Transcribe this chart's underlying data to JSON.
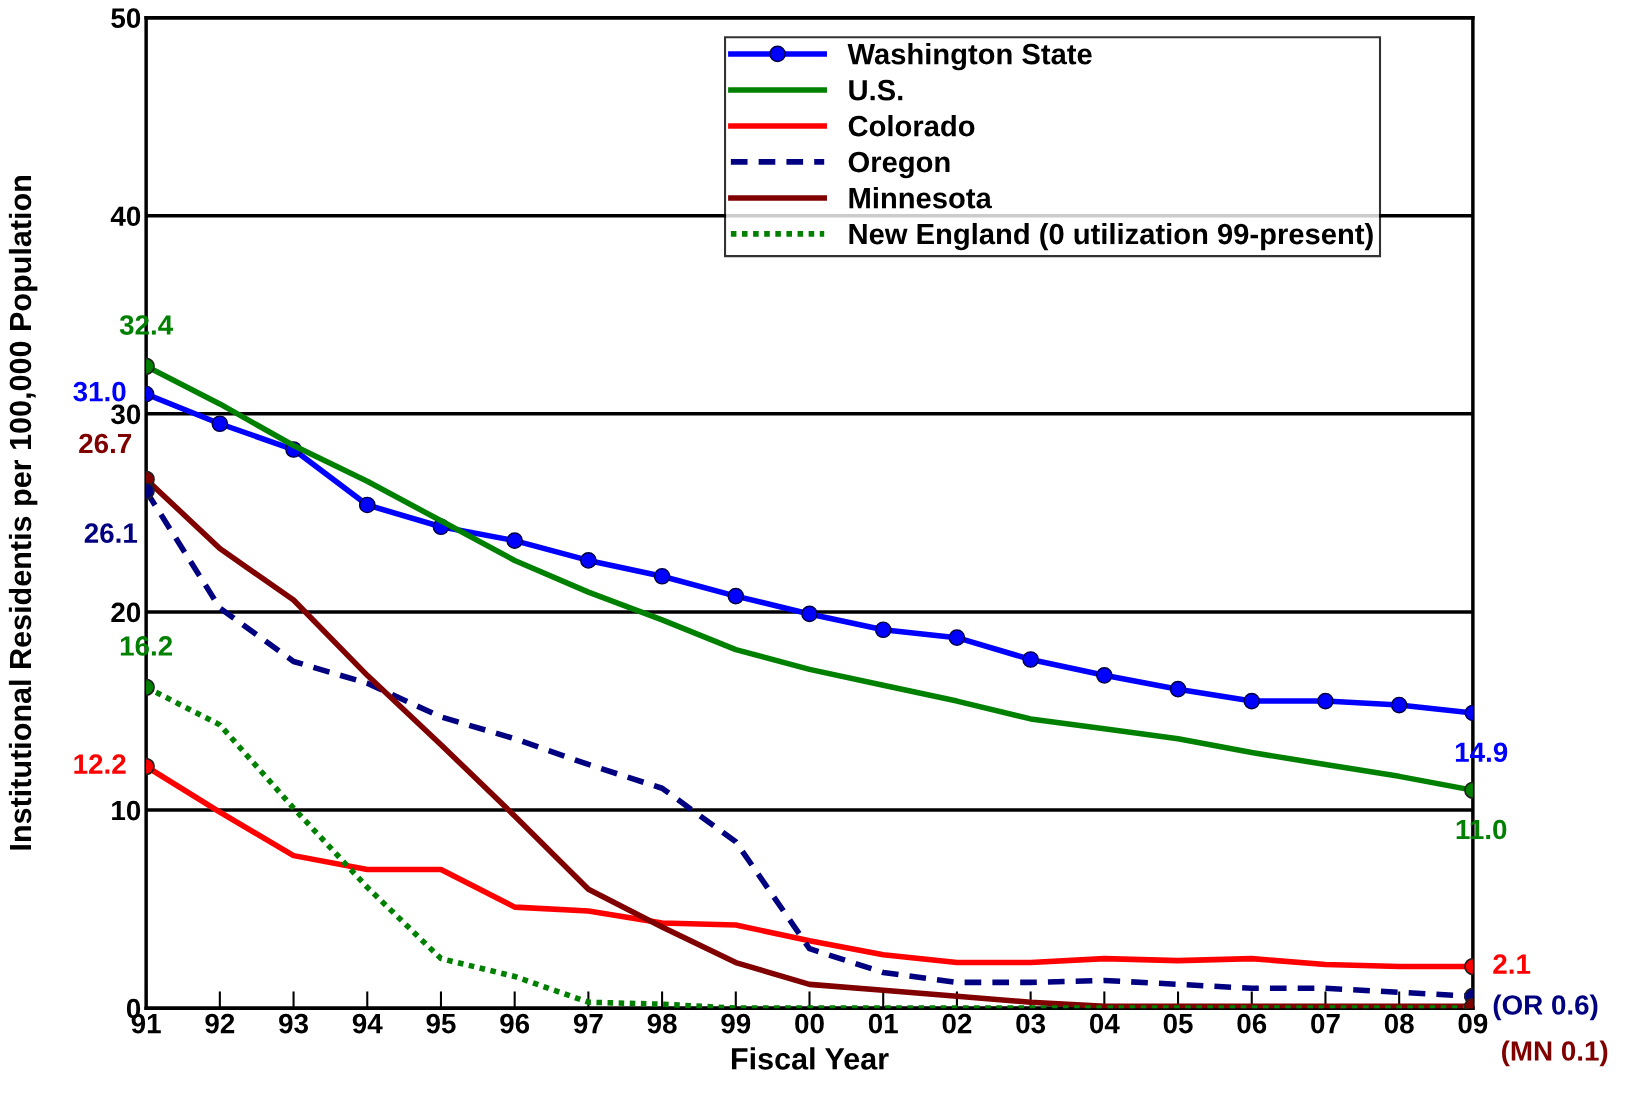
{
  "chart_data": {
    "type": "line",
    "xlabel": "Fiscal Year",
    "ylabel": "Institutional Residentis per 100,000 Population",
    "categories": [
      "91",
      "92",
      "93",
      "94",
      "95",
      "96",
      "97",
      "98",
      "99",
      "00",
      "01",
      "02",
      "03",
      "04",
      "05",
      "06",
      "07",
      "08",
      "09"
    ],
    "ylim": [
      0,
      50
    ],
    "yticks": [
      0,
      10,
      20,
      30,
      40,
      50
    ],
    "grid": "y",
    "legend": "top right",
    "series": [
      {
        "name": "Washington State",
        "color": "#0000ff",
        "marker": "circle",
        "line_style": "solid",
        "values": [
          31.0,
          29.5,
          28.2,
          25.4,
          24.3,
          23.6,
          22.6,
          21.8,
          20.8,
          19.9,
          19.1,
          18.7,
          17.6,
          16.8,
          16.1,
          15.5,
          15.5,
          15.3,
          14.9
        ]
      },
      {
        "name": "U.S.",
        "color": "#008000",
        "marker": "none",
        "line_style": "solid",
        "values": [
          32.4,
          30.5,
          28.4,
          26.6,
          24.6,
          22.6,
          21.0,
          19.6,
          18.1,
          17.1,
          16.3,
          15.5,
          14.6,
          14.1,
          13.6,
          12.9,
          12.3,
          11.7,
          11.0
        ]
      },
      {
        "name": "Colorado",
        "color": "#ff0000",
        "marker": "none",
        "line_style": "solid",
        "values": [
          12.2,
          9.9,
          7.7,
          7.0,
          7.0,
          5.1,
          4.9,
          4.3,
          4.2,
          3.4,
          2.7,
          2.3,
          2.3,
          2.5,
          2.4,
          2.5,
          2.2,
          2.1,
          2.1
        ]
      },
      {
        "name": "Oregon",
        "color": "#000080",
        "marker": "none",
        "line_style": "dashed",
        "values": [
          26.1,
          20.2,
          17.5,
          16.4,
          14.7,
          13.6,
          12.3,
          11.1,
          8.4,
          3.0,
          1.8,
          1.3,
          1.3,
          1.4,
          1.2,
          1.0,
          1.0,
          0.8,
          0.6
        ]
      },
      {
        "name": "Minnesota",
        "color": "#800000",
        "marker": "none",
        "line_style": "solid",
        "values": [
          26.7,
          23.2,
          20.6,
          16.8,
          13.3,
          9.7,
          6.0,
          4.1,
          2.3,
          1.2,
          0.9,
          0.6,
          0.3,
          0.1,
          0.1,
          0.1,
          0.1,
          0.1,
          0.1
        ]
      },
      {
        "name": "New England (0 utilization 99-present)",
        "color": "#008000",
        "marker": "none",
        "line_style": "dotted",
        "values": [
          16.2,
          14.3,
          10.1,
          6.1,
          2.5,
          1.6,
          0.3,
          0.2,
          0,
          0,
          0,
          0,
          0,
          0,
          0,
          0,
          0,
          0,
          0
        ]
      },
      {
        "type": "scatter",
        "marker": "circle",
        "x": [
          "91",
          "91",
          "91",
          "91",
          "91",
          "09",
          "09",
          "09",
          "09"
        ],
        "values": [
          32.4,
          26.7,
          26.1,
          16.2,
          12.2,
          11.0,
          2.1,
          0.6,
          0.1
        ],
        "colors": [
          "#008000",
          "#800000",
          "#000080",
          "#008000",
          "#ff0000",
          "#008000",
          "#ff0000",
          "#000080",
          "#800000"
        ]
      }
    ],
    "annotations": [
      {
        "text": "32.4",
        "x": "91",
        "y": 32.4
      },
      {
        "text": "31.0",
        "x": "91",
        "y": 31.0
      },
      {
        "text": "26.7",
        "x": "91",
        "y": 26.7
      },
      {
        "text": "26.1",
        "x": "91",
        "y": 26.1
      },
      {
        "text": "16.2",
        "x": "91",
        "y": 16.2
      },
      {
        "text": "12.2",
        "x": "91",
        "y": 12.2
      },
      {
        "text": "14.9",
        "x": "09",
        "y": 14.9
      },
      {
        "text": "11.0",
        "x": "09",
        "y": 11.0
      },
      {
        "text": "2.1",
        "x": "09",
        "y": 2.1
      },
      {
        "text": "(OR 0.6)",
        "x": "09",
        "y": 0.6
      },
      {
        "text": "(MN 0.1)",
        "x": "09",
        "y": 0.1
      }
    ]
  }
}
